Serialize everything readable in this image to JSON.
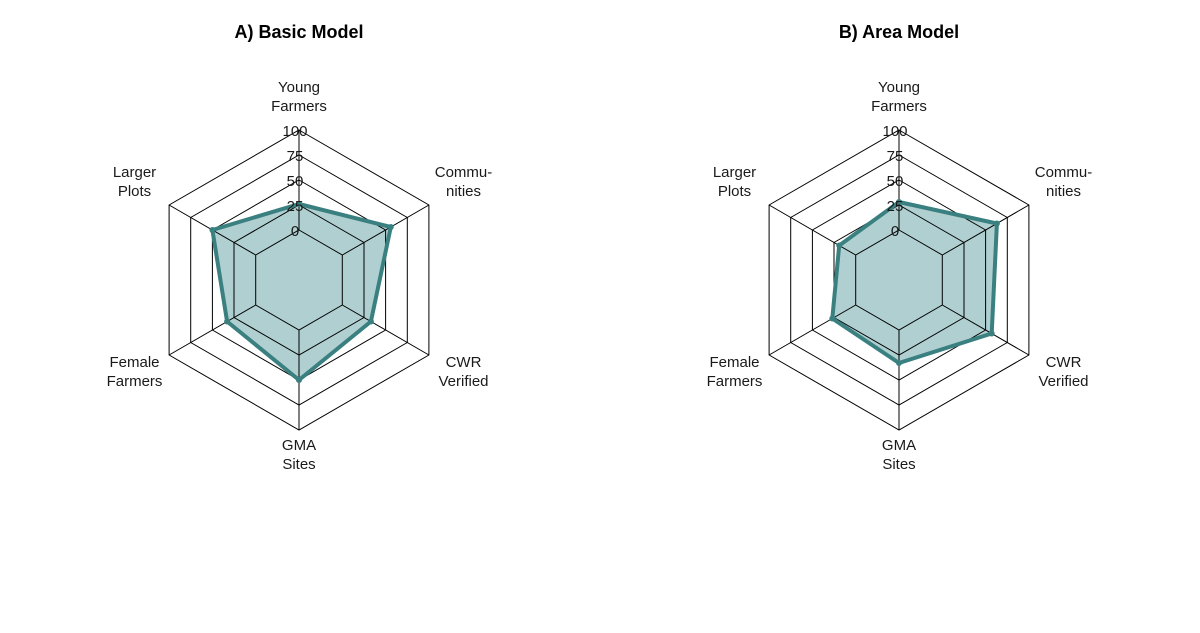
{
  "chart_data": [
    {
      "type": "radar",
      "title": "A) Basic Model",
      "axes": [
        [
          "Young",
          "Farmers"
        ],
        [
          "Commu-",
          "nities"
        ],
        [
          "CWR",
          "Verified"
        ],
        [
          "GMA",
          "Sites"
        ],
        [
          "Female",
          "Farmers"
        ],
        [
          "Larger",
          "Plots"
        ]
      ],
      "ticks": [
        "0",
        "25",
        "50",
        "75",
        "100"
      ],
      "rlim": [
        -50,
        100
      ],
      "values": [
        26,
        56,
        33,
        50,
        33,
        50
      ],
      "color": "#3a8080",
      "fill": "#b0cfd0"
    },
    {
      "type": "radar",
      "title": "B) Area Model",
      "axes": [
        [
          "Young",
          "Farmers"
        ],
        [
          "Commu-",
          "nities"
        ],
        [
          "CWR",
          "Verified"
        ],
        [
          "GMA",
          "Sites"
        ],
        [
          "Female",
          "Farmers"
        ],
        [
          "Larger",
          "Plots"
        ]
      ],
      "ticks": [
        "0",
        "25",
        "50",
        "75",
        "100"
      ],
      "rlim": [
        -50,
        100
      ],
      "values": [
        28,
        63,
        57,
        33,
        27,
        19
      ],
      "color": "#3a8080",
      "fill": "#b0cfd0"
    }
  ]
}
